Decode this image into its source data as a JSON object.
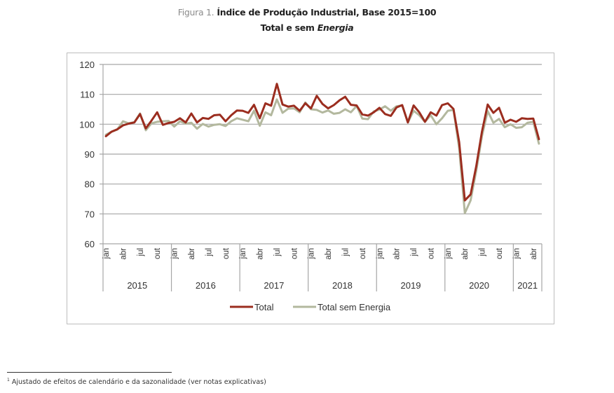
{
  "figure": {
    "label": "Figura 1.",
    "title": "Índice de Produção Industrial, Base 2015=100",
    "subtitle_plain": "Total e sem ",
    "subtitle_italic": "Energia"
  },
  "footnote": {
    "marker": "1",
    "text": "Ajustado de efeitos de calendário e da sazonalidade (ver notas explicativas)"
  },
  "chart_data": {
    "type": "line",
    "title": "Índice de Produção Industrial, Base 2015=100",
    "subtitle": "Total e sem Energia",
    "xlabel": "",
    "ylabel": "",
    "ylim": [
      60,
      120
    ],
    "yticks": [
      60,
      70,
      80,
      90,
      100,
      110,
      120
    ],
    "grid": true,
    "legend_position": "bottom",
    "month_tick_labels": [
      "jan",
      "abr",
      "jul",
      "out"
    ],
    "years": [
      {
        "label": "2015",
        "months": 12
      },
      {
        "label": "2016",
        "months": 12
      },
      {
        "label": "2017",
        "months": 12
      },
      {
        "label": "2018",
        "months": 12
      },
      {
        "label": "2019",
        "months": 12
      },
      {
        "label": "2020",
        "months": 12
      },
      {
        "label": "2021",
        "months": 5
      }
    ],
    "series": [
      {
        "name": "Total",
        "color": "#9b2d1f",
        "values": [
          96.0,
          97.5,
          98.3,
          99.6,
          100.2,
          100.6,
          103.4,
          98.6,
          101.2,
          104.0,
          99.8,
          100.4,
          100.8,
          102.0,
          100.6,
          103.6,
          100.6,
          102.1,
          101.8,
          103.0,
          103.2,
          101.0,
          103.0,
          104.6,
          104.5,
          103.8,
          106.5,
          102.0,
          107.0,
          106.2,
          113.5,
          106.6,
          105.9,
          106.2,
          104.5,
          107.0,
          105.3,
          109.5,
          106.8,
          105.3,
          106.4,
          108.0,
          109.2,
          106.5,
          106.3,
          103.3,
          102.9,
          104.0,
          105.5,
          103.4,
          102.8,
          105.6,
          106.4,
          100.6,
          106.3,
          104.0,
          100.8,
          104.0,
          102.9,
          106.4,
          107.0,
          105.1,
          94.0,
          74.5,
          76.5,
          86.0,
          97.5,
          106.6,
          103.8,
          105.5,
          100.5,
          101.5,
          100.8,
          102.0,
          101.8,
          101.9,
          95.0
        ]
      },
      {
        "name": "Total sem Energia",
        "color": "#b3b89e",
        "values": [
          96.5,
          97.5,
          98.2,
          101.0,
          100.3,
          100.7,
          103.6,
          98.0,
          100.3,
          100.8,
          101.0,
          101.1,
          99.2,
          101.0,
          100.2,
          100.5,
          98.5,
          100.1,
          99.2,
          99.8,
          100.0,
          99.4,
          101.0,
          102.0,
          101.5,
          101.0,
          104.5,
          99.5,
          104.0,
          103.0,
          108.3,
          103.8,
          105.2,
          105.3,
          104.0,
          107.3,
          105.0,
          104.8,
          103.9,
          104.6,
          103.5,
          103.8,
          105.0,
          104.0,
          106.1,
          101.9,
          101.7,
          104.3,
          104.9,
          106.0,
          104.5,
          106.0,
          106.3,
          100.6,
          104.5,
          103.0,
          100.8,
          103.0,
          100.0,
          102.0,
          104.5,
          104.8,
          92.0,
          70.3,
          74.5,
          84.5,
          96.0,
          104.4,
          100.5,
          101.8,
          99.0,
          100.0,
          98.8,
          99.0,
          100.5,
          100.8,
          93.5
        ]
      }
    ]
  }
}
